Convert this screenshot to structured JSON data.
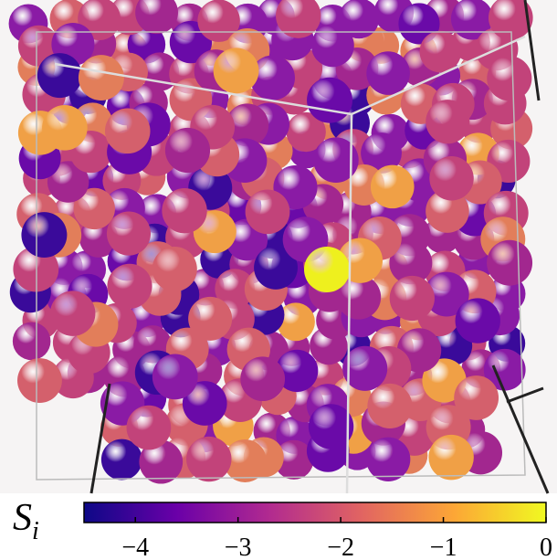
{
  "colorbar": {
    "label": {
      "symbol": "S",
      "subscript": "i"
    },
    "lim": [
      -4.5,
      0
    ],
    "ticks": [
      {
        "value": -4,
        "label": "−4"
      },
      {
        "value": -3,
        "label": "−3"
      },
      {
        "value": -2,
        "label": "−2"
      },
      {
        "value": -1,
        "label": "−1"
      },
      {
        "value": 0,
        "label": "0"
      }
    ],
    "colormap": [
      "#0d0887",
      "#6a00a8",
      "#b12a90",
      "#e16462",
      "#fca636",
      "#f0f921"
    ]
  }
}
